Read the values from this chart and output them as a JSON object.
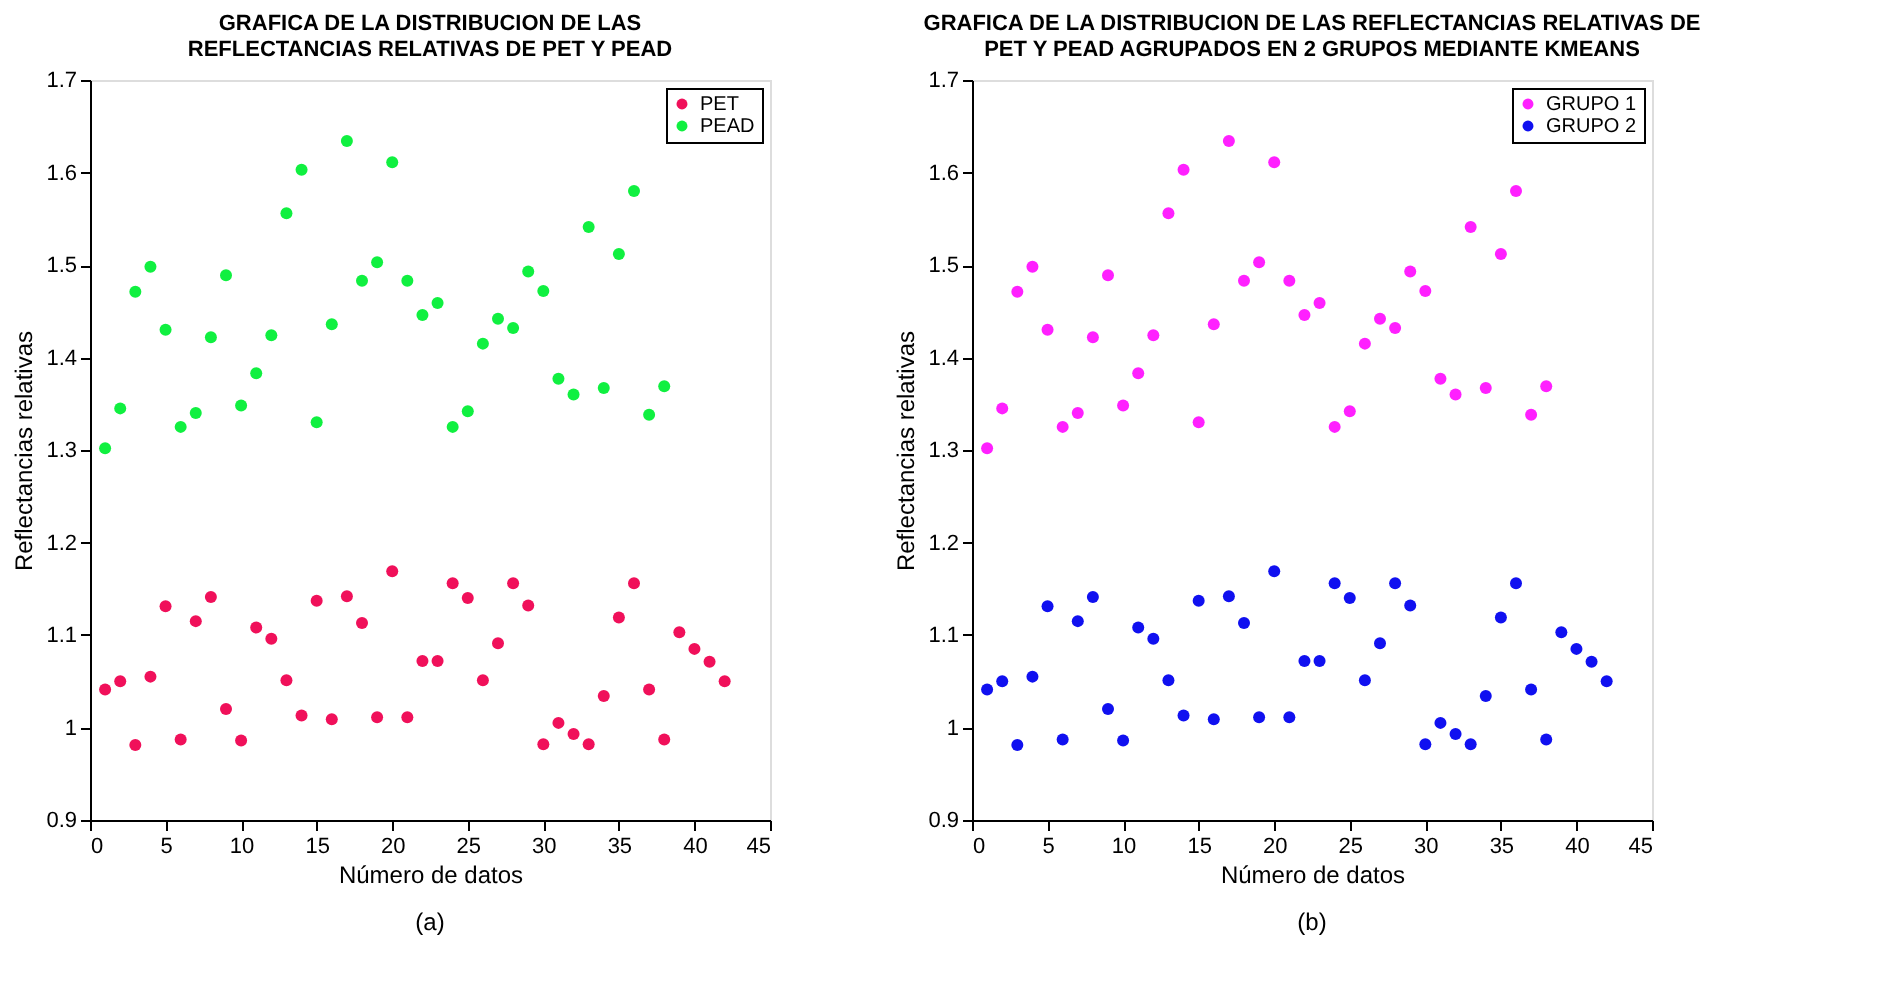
{
  "chart_data": [
    {
      "type": "scatter",
      "title": "GRAFICA DE LA DISTRIBUCION DE LAS\nREFLECTANCIAS RELATIVAS DE PET Y PEAD",
      "xlabel": "Número de datos",
      "ylabel": "Reflectancias relativas",
      "annotations": [
        "(a)"
      ],
      "xlim": [
        0,
        45
      ],
      "xticks": [
        0,
        5,
        10,
        15,
        20,
        25,
        30,
        35,
        40,
        45
      ],
      "ylim": [
        0.9,
        1.7
      ],
      "yticks": [
        0.9,
        1,
        1.1,
        1.2,
        1.3,
        1.4,
        1.5,
        1.6,
        1.7
      ],
      "grid": false,
      "legend": "top right",
      "marker": "circle",
      "series": [
        {
          "name": "PET",
          "color": "#f0105a",
          "x": [
            1,
            2,
            3,
            4,
            5,
            6,
            7,
            8,
            9,
            10,
            11,
            12,
            13,
            14,
            15,
            16,
            17,
            18,
            19,
            20,
            21,
            22,
            23,
            24,
            25,
            26,
            27,
            28,
            29,
            30,
            31,
            32,
            33,
            34,
            35,
            36,
            37,
            38,
            39,
            40,
            41,
            42
          ],
          "values": [
            1.041,
            1.05,
            0.981,
            1.055,
            1.131,
            0.987,
            1.115,
            1.141,
            1.02,
            0.986,
            1.108,
            1.096,
            1.051,
            1.013,
            1.137,
            1.009,
            1.142,
            1.113,
            1.011,
            1.169,
            1.011,
            1.072,
            1.072,
            1.156,
            1.14,
            1.051,
            1.091,
            1.156,
            1.132,
            0.982,
            1.005,
            0.993,
            0.982,
            1.034,
            1.119,
            1.156,
            1.041,
            0.987,
            1.103,
            1.085,
            1.071,
            1.05
          ]
        },
        {
          "name": "PEAD",
          "color": "#10f040",
          "x": [
            1,
            2,
            3,
            4,
            5,
            6,
            7,
            8,
            9,
            10,
            11,
            12,
            13,
            14,
            15,
            16,
            17,
            18,
            19,
            20,
            21,
            22,
            23,
            24,
            25,
            26,
            27,
            28,
            29,
            30,
            31,
            32,
            33,
            34,
            35,
            36,
            37,
            38
          ],
          "values": [
            1.302,
            1.345,
            1.471,
            1.498,
            1.43,
            1.325,
            1.34,
            1.422,
            1.489,
            1.348,
            1.383,
            1.424,
            1.556,
            1.603,
            1.33,
            1.436,
            1.634,
            1.483,
            1.503,
            1.611,
            1.483,
            1.446,
            1.459,
            1.325,
            1.342,
            1.415,
            1.442,
            1.432,
            1.493,
            1.472,
            1.377,
            1.36,
            1.541,
            1.367,
            1.512,
            1.58,
            1.338,
            1.369
          ]
        }
      ]
    },
    {
      "type": "scatter",
      "title": "GRAFICA DE LA DISTRIBUCION DE LAS REFLECTANCIAS RELATIVAS DE\nPET Y PEAD AGRUPADOS EN 2 GRUPOS MEDIANTE KMEANS",
      "xlabel": "Número de datos",
      "ylabel": "Reflectancias relativas",
      "annotations": [
        "(b)"
      ],
      "xlim": [
        0,
        45
      ],
      "xticks": [
        0,
        5,
        10,
        15,
        20,
        25,
        30,
        35,
        40,
        45
      ],
      "ylim": [
        0.9,
        1.7
      ],
      "yticks": [
        0.9,
        1,
        1.1,
        1.2,
        1.3,
        1.4,
        1.5,
        1.6,
        1.7
      ],
      "grid": false,
      "legend": "top right",
      "marker": "circle",
      "series": [
        {
          "name": "GRUPO 1",
          "color": "#ff20ff",
          "x": [
            1,
            2,
            3,
            4,
            5,
            6,
            7,
            8,
            9,
            10,
            11,
            12,
            13,
            14,
            15,
            16,
            17,
            18,
            19,
            20,
            21,
            22,
            23,
            24,
            25,
            26,
            27,
            28,
            29,
            30,
            31,
            32,
            33,
            34,
            35,
            36,
            37,
            38
          ],
          "values": [
            1.302,
            1.345,
            1.471,
            1.498,
            1.43,
            1.325,
            1.34,
            1.422,
            1.489,
            1.348,
            1.383,
            1.424,
            1.556,
            1.603,
            1.33,
            1.436,
            1.634,
            1.483,
            1.503,
            1.611,
            1.483,
            1.446,
            1.459,
            1.325,
            1.342,
            1.415,
            1.442,
            1.432,
            1.493,
            1.472,
            1.377,
            1.36,
            1.541,
            1.367,
            1.512,
            1.58,
            1.338,
            1.369
          ]
        },
        {
          "name": "GRUPO 2",
          "color": "#1010f0",
          "x": [
            1,
            2,
            3,
            4,
            5,
            6,
            7,
            8,
            9,
            10,
            11,
            12,
            13,
            14,
            15,
            16,
            17,
            18,
            19,
            20,
            21,
            22,
            23,
            24,
            25,
            26,
            27,
            28,
            29,
            30,
            31,
            32,
            33,
            34,
            35,
            36,
            37,
            38,
            39,
            40,
            41,
            42
          ],
          "values": [
            1.041,
            1.05,
            0.981,
            1.055,
            1.131,
            0.987,
            1.115,
            1.141,
            1.02,
            0.986,
            1.108,
            1.096,
            1.051,
            1.013,
            1.137,
            1.009,
            1.142,
            1.113,
            1.011,
            1.169,
            1.011,
            1.072,
            1.072,
            1.156,
            1.14,
            1.051,
            1.091,
            1.156,
            1.132,
            0.982,
            1.005,
            0.993,
            0.982,
            1.034,
            1.119,
            1.156,
            1.041,
            0.987,
            1.103,
            1.085,
            1.071,
            1.05
          ]
        }
      ]
    }
  ]
}
